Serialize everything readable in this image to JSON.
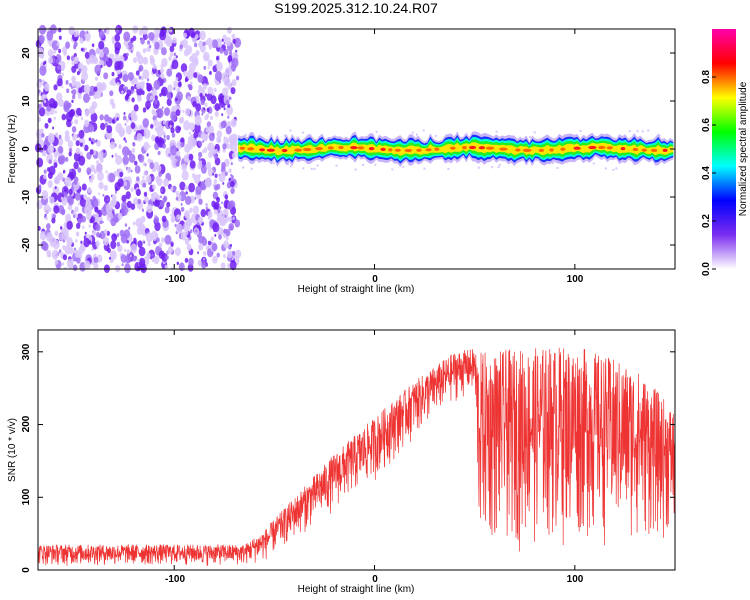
{
  "title": "S199.2025.312.10.24.R07",
  "colors": {
    "line": "#ee3333",
    "scatter": "#7b2cf0",
    "axis": "#000000"
  },
  "chart_data": [
    {
      "type": "heatmap",
      "xlabel": "Height of straight line (km)",
      "ylabel": "Frequency (Hz)",
      "xlim": [
        -168,
        150
      ],
      "ylim": [
        -25,
        25
      ],
      "xticks": [
        -100,
        0,
        100
      ],
      "yticks": [
        -20,
        -10,
        0,
        10,
        20
      ],
      "noise_region_x": [
        -168,
        -68
      ],
      "signal_start_x": -68,
      "signal_center_hz": 0,
      "signal_halfwidth_hz": 1.5,
      "colorbar": {
        "label": "Normalized spectral amplitude",
        "range": [
          0,
          1
        ],
        "ticks": [
          "0.0",
          "0.2",
          "0.4",
          "0.6",
          "0.8"
        ],
        "tick_values": [
          0,
          0.2,
          0.4,
          0.6,
          0.8
        ],
        "colors": [
          "#ffffff",
          "#7b2cf0",
          "#0000ff",
          "#00ffff",
          "#00ff00",
          "#ffff00",
          "#ff0000",
          "#ff00aa"
        ]
      }
    },
    {
      "type": "line",
      "xlabel": "Height of straight line (km)",
      "ylabel": "SNR (10 * v/v)",
      "xlim": [
        -168,
        150
      ],
      "ylim": [
        0,
        330
      ],
      "xticks": [
        -100,
        0,
        100
      ],
      "yticks": [
        0,
        100,
        200,
        300
      ],
      "trend": [
        {
          "x": -168,
          "lo": 5,
          "hi": 35
        },
        {
          "x": -65,
          "lo": 5,
          "hi": 35
        },
        {
          "x": -55,
          "lo": 10,
          "hi": 55
        },
        {
          "x": -40,
          "lo": 40,
          "hi": 100
        },
        {
          "x": -20,
          "lo": 80,
          "hi": 160
        },
        {
          "x": 0,
          "lo": 120,
          "hi": 210
        },
        {
          "x": 20,
          "lo": 180,
          "hi": 260
        },
        {
          "x": 40,
          "lo": 230,
          "hi": 300
        },
        {
          "x": 50,
          "lo": 240,
          "hi": 305
        },
        {
          "x": 52,
          "lo": 20,
          "hi": 300
        },
        {
          "x": 100,
          "lo": 30,
          "hi": 310
        },
        {
          "x": 130,
          "lo": 30,
          "hi": 280
        },
        {
          "x": 150,
          "lo": 40,
          "hi": 220
        }
      ]
    }
  ]
}
